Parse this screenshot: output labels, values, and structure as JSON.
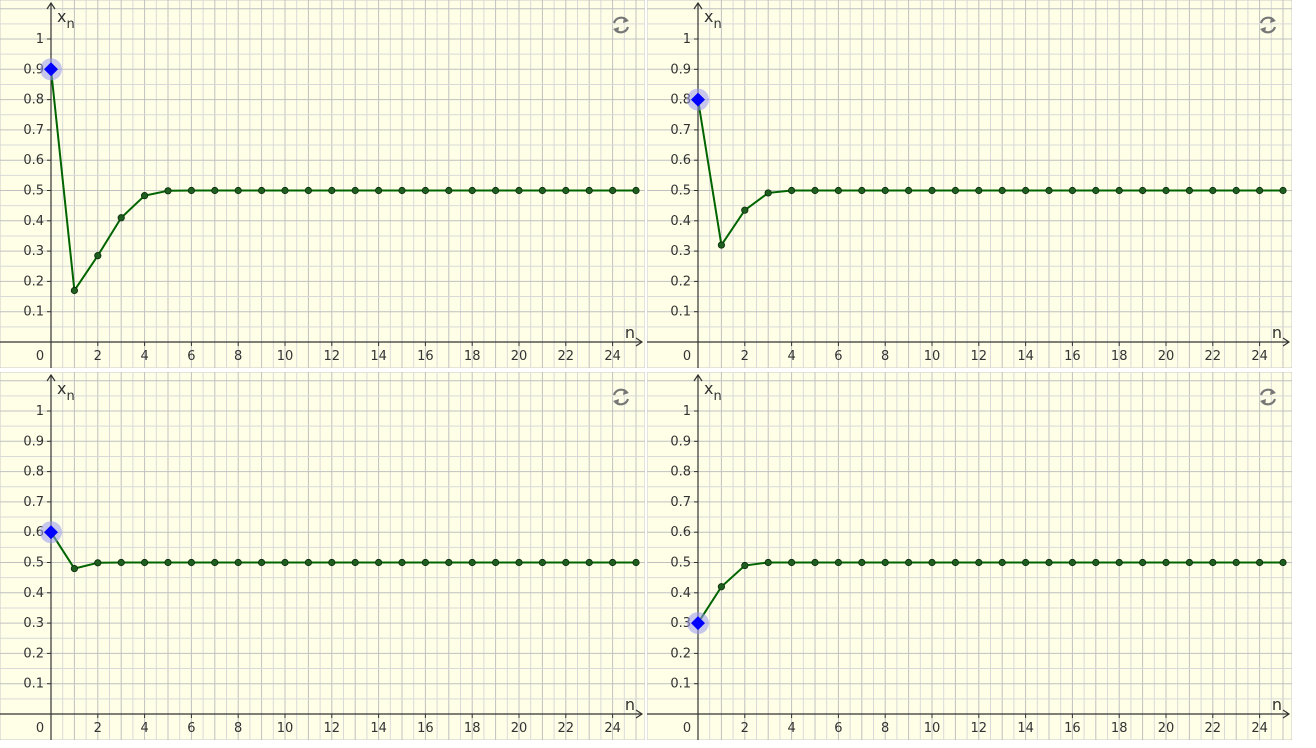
{
  "colors": {
    "background": "#ffffe8",
    "grid_minor": "#d9d9d9",
    "grid_major": "#c0c0c0",
    "axis": "#333333",
    "series_line": "#006400",
    "series_point": "#1e5e1e",
    "start_point": "#0000ff",
    "start_halo": "#9999ee",
    "refresh_icon": "#777777"
  },
  "icons": {
    "refresh": "refresh-icon"
  },
  "chart_data": [
    {
      "type": "line",
      "xlabel": "n",
      "ylabel": "x",
      "ylabel_sub": "n",
      "origin_label": "0",
      "xlim": [
        0,
        25
      ],
      "ylim": [
        0,
        1
      ],
      "x_ticks": [
        "2",
        "4",
        "6",
        "8",
        "10",
        "12",
        "14",
        "16",
        "18",
        "20",
        "22",
        "24"
      ],
      "y_ticks": [
        "0.1",
        "0.2",
        "0.3",
        "0.4",
        "0.5",
        "0.6",
        "0.7",
        "0.8",
        "0.9",
        "1"
      ],
      "grid": true,
      "start_value": 0.9,
      "x": [
        0,
        1,
        2,
        3,
        4,
        5,
        6,
        7,
        8,
        9,
        10,
        11,
        12,
        13,
        14,
        15,
        16,
        17,
        18,
        19,
        20,
        21,
        22,
        23,
        24,
        25
      ],
      "values": [
        0.9,
        0.17,
        0.285,
        0.41,
        0.483,
        0.499,
        0.5,
        0.5,
        0.5,
        0.5,
        0.5,
        0.5,
        0.5,
        0.5,
        0.5,
        0.5,
        0.5,
        0.5,
        0.5,
        0.5,
        0.5,
        0.5,
        0.5,
        0.5,
        0.5,
        0.5
      ]
    },
    {
      "type": "line",
      "xlabel": "n",
      "ylabel": "x",
      "ylabel_sub": "n",
      "origin_label": "0",
      "xlim": [
        0,
        25
      ],
      "ylim": [
        0,
        1
      ],
      "x_ticks": [
        "2",
        "4",
        "6",
        "8",
        "10",
        "12",
        "14",
        "16",
        "18",
        "20",
        "22",
        "24"
      ],
      "y_ticks": [
        "0.1",
        "0.2",
        "0.3",
        "0.4",
        "0.5",
        "0.6",
        "0.7",
        "0.8",
        "0.9",
        "1"
      ],
      "grid": true,
      "start_value": 0.8,
      "x": [
        0,
        1,
        2,
        3,
        4,
        5,
        6,
        7,
        8,
        9,
        10,
        11,
        12,
        13,
        14,
        15,
        16,
        17,
        18,
        19,
        20,
        21,
        22,
        23,
        24,
        25
      ],
      "values": [
        0.8,
        0.32,
        0.435,
        0.492,
        0.5,
        0.5,
        0.5,
        0.5,
        0.5,
        0.5,
        0.5,
        0.5,
        0.5,
        0.5,
        0.5,
        0.5,
        0.5,
        0.5,
        0.5,
        0.5,
        0.5,
        0.5,
        0.5,
        0.5,
        0.5,
        0.5
      ]
    },
    {
      "type": "line",
      "xlabel": "n",
      "ylabel": "x",
      "ylabel_sub": "n",
      "origin_label": "0",
      "xlim": [
        0,
        25
      ],
      "ylim": [
        0,
        1
      ],
      "x_ticks": [
        "2",
        "4",
        "6",
        "8",
        "10",
        "12",
        "14",
        "16",
        "18",
        "20",
        "22",
        "24"
      ],
      "y_ticks": [
        "0.1",
        "0.2",
        "0.3",
        "0.4",
        "0.5",
        "0.6",
        "0.7",
        "0.8",
        "0.9",
        "1"
      ],
      "grid": true,
      "start_value": 0.6,
      "x": [
        0,
        1,
        2,
        3,
        4,
        5,
        6,
        7,
        8,
        9,
        10,
        11,
        12,
        13,
        14,
        15,
        16,
        17,
        18,
        19,
        20,
        21,
        22,
        23,
        24,
        25
      ],
      "values": [
        0.6,
        0.48,
        0.499,
        0.5,
        0.5,
        0.5,
        0.5,
        0.5,
        0.5,
        0.5,
        0.5,
        0.5,
        0.5,
        0.5,
        0.5,
        0.5,
        0.5,
        0.5,
        0.5,
        0.5,
        0.5,
        0.5,
        0.5,
        0.5,
        0.5,
        0.5
      ]
    },
    {
      "type": "line",
      "xlabel": "n",
      "ylabel": "x",
      "ylabel_sub": "n",
      "origin_label": "0",
      "xlim": [
        0,
        25
      ],
      "ylim": [
        0,
        1
      ],
      "x_ticks": [
        "2",
        "4",
        "6",
        "8",
        "10",
        "12",
        "14",
        "16",
        "18",
        "20",
        "22",
        "24"
      ],
      "y_ticks": [
        "0.1",
        "0.2",
        "0.3",
        "0.4",
        "0.5",
        "0.6",
        "0.7",
        "0.8",
        "0.9",
        "1"
      ],
      "grid": true,
      "start_value": 0.3,
      "x": [
        0,
        1,
        2,
        3,
        4,
        5,
        6,
        7,
        8,
        9,
        10,
        11,
        12,
        13,
        14,
        15,
        16,
        17,
        18,
        19,
        20,
        21,
        22,
        23,
        24,
        25
      ],
      "values": [
        0.3,
        0.42,
        0.49,
        0.5,
        0.5,
        0.5,
        0.5,
        0.5,
        0.5,
        0.5,
        0.5,
        0.5,
        0.5,
        0.5,
        0.5,
        0.5,
        0.5,
        0.5,
        0.5,
        0.5,
        0.5,
        0.5,
        0.5,
        0.5,
        0.5,
        0.5
      ]
    }
  ]
}
